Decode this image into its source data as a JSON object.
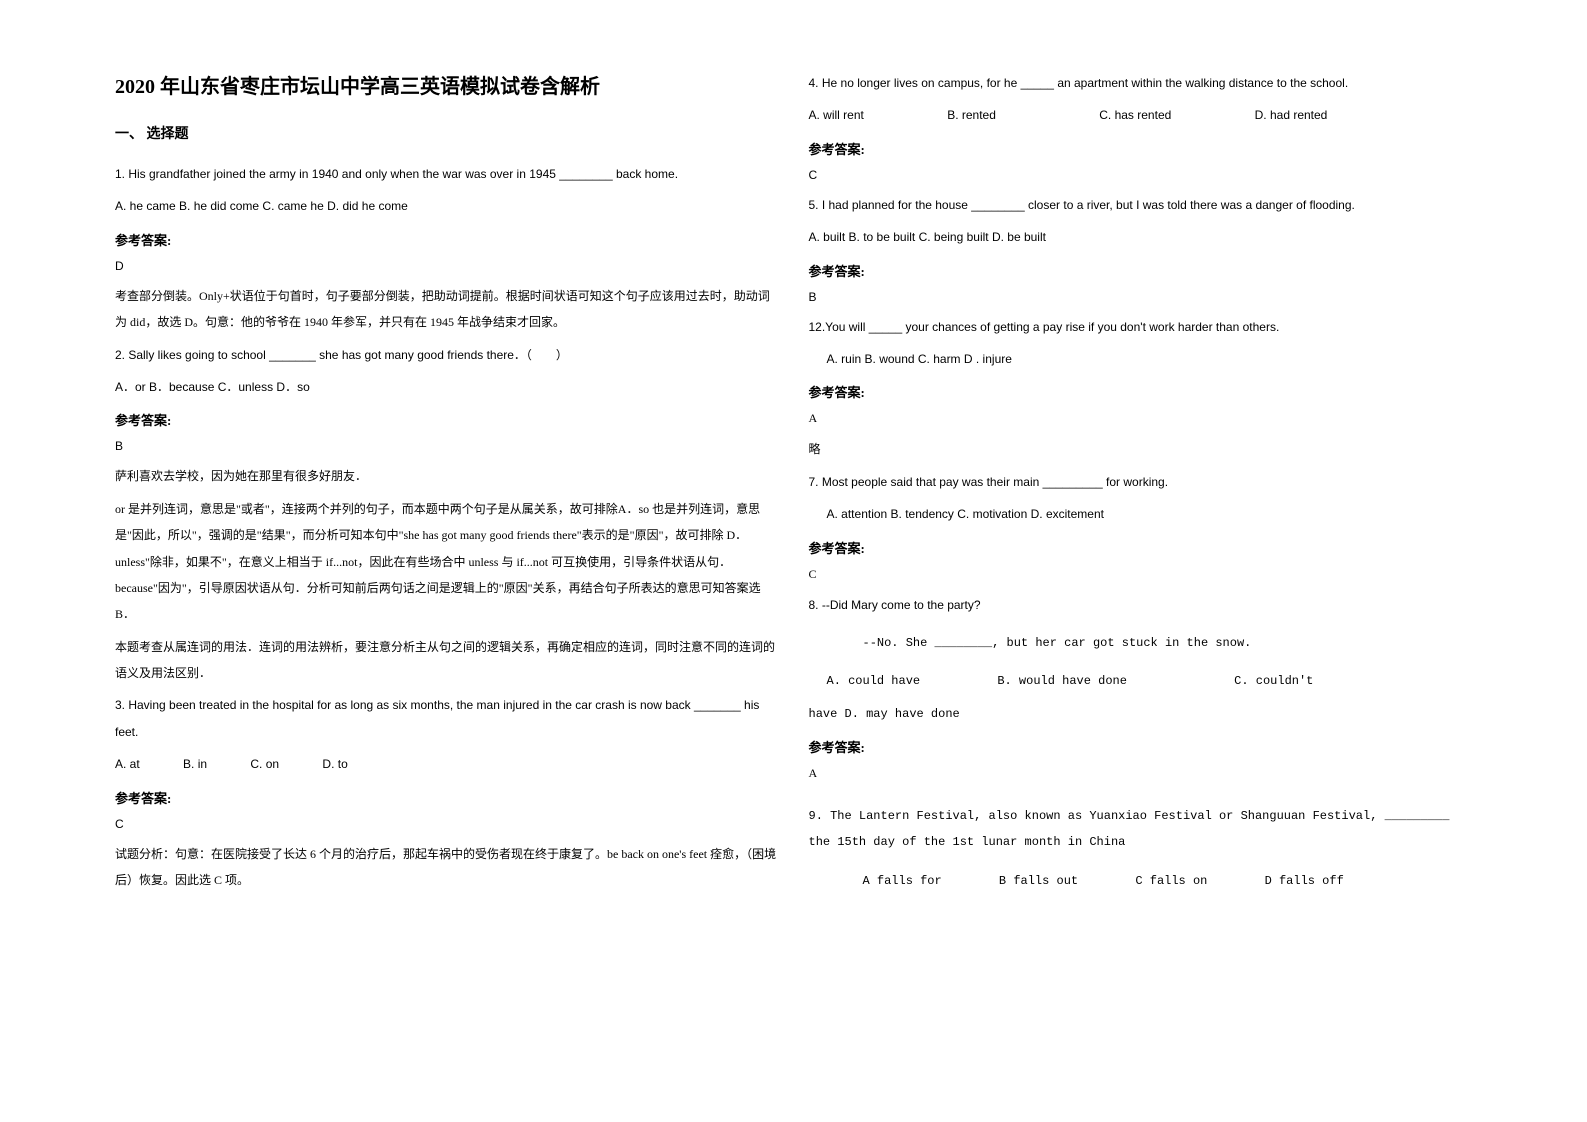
{
  "title": "2020 年山东省枣庄市坛山中学高三英语模拟试卷含解析",
  "section_header": "一、 选择题",
  "answer_label": "参考答案:",
  "略": "略",
  "q1": {
    "text": "1. His grandfather joined the army in 1940 and only when the war was over in 1945 ________ back home.",
    "options": "A. he came   B. he did come   C. came he   D. did he come",
    "answer": "D",
    "explanation": "考查部分倒装。Only+状语位于句首时，句子要部分倒装，把助动词提前。根据时间状语可知这个句子应该用过去时，助动词为 did，故选 D。句意：他的爷爷在 1940 年参军，并只有在 1945 年战争结束才回家。"
  },
  "q2": {
    "text": "2. Sally likes going to school _______ she has got many good friends there．（　　）",
    "options": "A．or   B．because    C．unless      D．so",
    "answer": "B",
    "explanation_l1": "萨利喜欢去学校，因为她在那里有很多好朋友．",
    "explanation_l2": "or 是并列连词，意思是\"或者\"，连接两个并列的句子，而本题中两个句子是从属关系，故可排除A．so 也是并列连词，意思是\"因此，所以\"，强调的是\"结果\"，而分析可知本句中\"she has got many good friends there\"表示的是\"原因\"，故可排除 D．unless\"除非，如果不\"，在意义上相当于 if...not，因此在有些场合中 unless 与 if...not 可互换使用，引导条件状语从句．because\"因为\"，引导原因状语从句．分析可知前后两句话之间是逻辑上的\"原因\"关系，再结合句子所表达的意思可知答案选 B．",
    "explanation_l3": "本题考查从属连词的用法．连词的用法辨析，要注意分析主从句之间的逻辑关系，再确定相应的连词，同时注意不同的连词的语义及用法区别．"
  },
  "q3": {
    "text": "3. Having been treated in the hospital for as long as six months, the man injured in the car crash is now back _______ his feet.",
    "options_a": "A. at",
    "options_b": "B. in",
    "options_c": "C. on",
    "options_d": "D. to",
    "answer": "C",
    "explanation": "试题分析：句意：在医院接受了长达 6 个月的治疗后，那起车祸中的受伤者现在终于康复了。be back on one's feet 痊愈，（困境后）恢复。因此选 C 项。"
  },
  "q4": {
    "text": "4. He no longer lives on campus, for he _____ an apartment within the walking distance to the school.",
    "opt_a": "A. will rent",
    "opt_b": "B. rented",
    "opt_c": "C. has rented",
    "opt_d": "D. had rented",
    "answer": "C"
  },
  "q5": {
    "text": "5. I had planned for the house ________ closer to a river, but I was told there was a danger of flooding.",
    "options": "A. built        B. to be built          C. being built          D. be built",
    "answer": "B"
  },
  "q12": {
    "text": "12.You will _____ your chances of getting a pay rise if you don't work harder than others.",
    "options": "A. ruin     B. wound    C. harm      D . injure",
    "answer": "A"
  },
  "q7": {
    "text": "7. Most people said that pay was their main _________ for working.",
    "options": "A. attention   B. tendency           C. motivation           D. excitement",
    "answer": "C"
  },
  "q8": {
    "text": "8.  --Did Mary come to the party?",
    "text2": "--No. She ________, but her car got stuck in the snow.",
    "opt_a": "A. could have",
    "opt_b": "B. would have done",
    "opt_c": "C. couldn't",
    "line2": "have          D. may have done",
    "answer": "A"
  },
  "q9": {
    "text": "9. The Lantern Festival, also known as Yuanxiao Festival or Shanguuan Festival, _________ the 15th day of the 1st lunar month in China",
    "opt_a": "A falls for",
    "opt_b": "B falls out",
    "opt_c": "C falls on",
    "opt_d": "D falls off"
  }
}
